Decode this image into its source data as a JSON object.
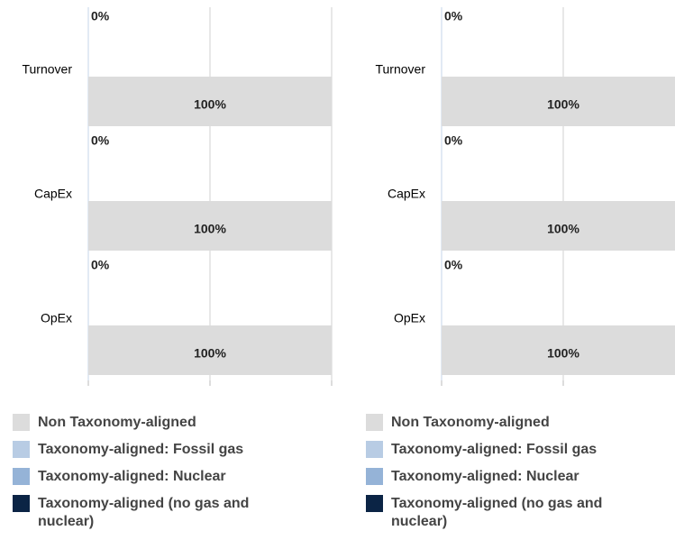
{
  "chart_data": [
    {
      "type": "stacked_barh",
      "categories": [
        "Turnover",
        "CapEx",
        "OpEx"
      ],
      "xlim": [
        0,
        100
      ],
      "xticks": [
        0,
        50,
        100
      ],
      "grid": true,
      "series": [
        {
          "name": "Non Taxonomy-aligned",
          "color": "#dcdcdc",
          "values": [
            100,
            100,
            100
          ],
          "value_labels": [
            "100%",
            "100%",
            "100%"
          ]
        },
        {
          "name": "Taxonomy-aligned: Fossil gas",
          "color": "#b8cce4",
          "values": [
            0,
            0,
            0
          ],
          "value_labels": [
            "0%",
            "0%",
            "0%"
          ]
        },
        {
          "name": "Taxonomy-aligned: Nuclear",
          "color": "#95b3d7",
          "values": [
            0,
            0,
            0
          ]
        },
        {
          "name": "Taxonomy-aligned (no gas and nuclear)",
          "color": "#0b2445",
          "values": [
            0,
            0,
            0
          ],
          "value_labels": [
            "0%",
            "0%",
            "0%"
          ]
        }
      ]
    },
    {
      "type": "stacked_barh",
      "categories": [
        "Turnover",
        "CapEx",
        "OpEx"
      ],
      "xlim": [
        0,
        100
      ],
      "xticks": [
        0,
        50,
        100
      ],
      "grid": true,
      "series": [
        {
          "name": "Non Taxonomy-aligned",
          "color": "#dcdcdc",
          "values": [
            100,
            100,
            100
          ],
          "value_labels": [
            "100%",
            "100%",
            "100%"
          ]
        },
        {
          "name": "Taxonomy-aligned: Fossil gas",
          "color": "#b8cce4",
          "values": [
            0,
            0,
            0
          ],
          "value_labels": [
            "0%",
            "0%",
            "0%"
          ]
        },
        {
          "name": "Taxonomy-aligned: Nuclear",
          "color": "#95b3d7",
          "values": [
            0,
            0,
            0
          ]
        },
        {
          "name": "Taxonomy-aligned (no gas and nuclear)",
          "color": "#0b2445",
          "values": [
            0,
            0,
            0
          ],
          "value_labels": [
            "0%",
            "0%",
            "0%"
          ]
        }
      ]
    }
  ]
}
